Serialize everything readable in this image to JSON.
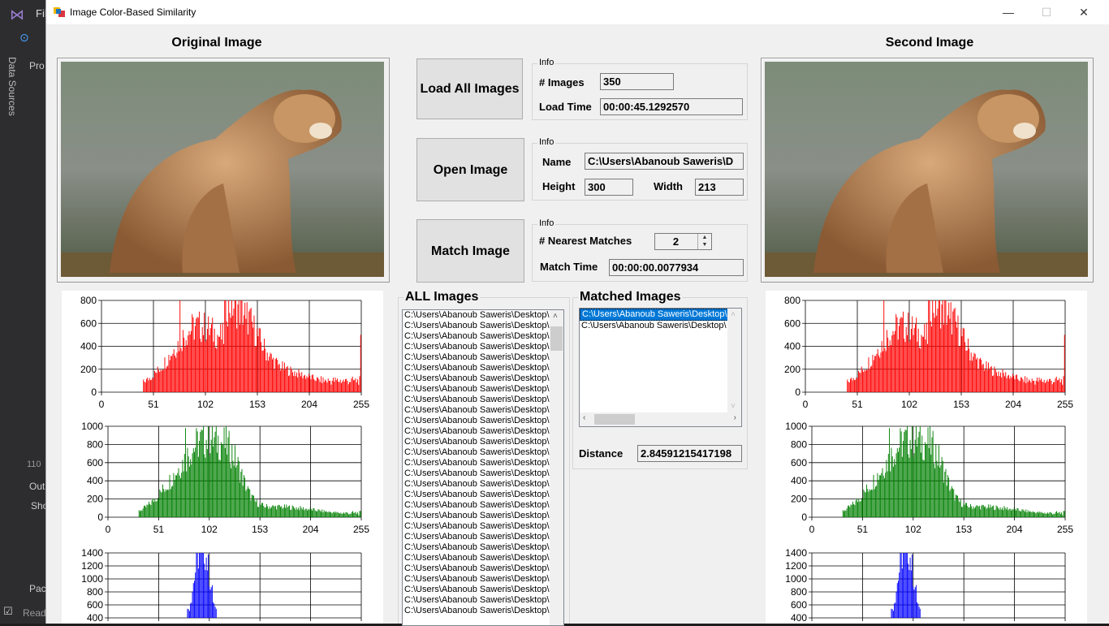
{
  "window": {
    "title": "Image Color-Based Similarity",
    "minimize": "—",
    "maximize": "☐",
    "close": "✕"
  },
  "ide": {
    "side_tab": "Data Sources",
    "menu_fragment": "Fil",
    "pro": "Pro",
    "line_num": "110",
    "out": "Out",
    "sho": "Sho",
    "pac": "Pac",
    "ready": "Ready"
  },
  "original_heading": "Original Image",
  "second_heading": "Second Image",
  "load_all": {
    "button": "Load All Images",
    "group": "Info",
    "images_label": "# Images",
    "images_value": "350",
    "load_time_label": "Load Time",
    "load_time_value": "00:00:45.1292570"
  },
  "open_image": {
    "button": "Open Image",
    "group": "Info",
    "name_label": "Name",
    "name_value": "C:\\Users\\Abanoub Saweris\\D",
    "height_label": "Height",
    "height_value": "300",
    "width_label": "Width",
    "width_value": "213"
  },
  "match_image": {
    "button": "Match Image",
    "group": "Info",
    "nearest_label": "# Nearest Matches",
    "nearest_value": "2",
    "match_time_label": "Match Time",
    "match_time_value": "00:00:00.0077934"
  },
  "all_images": {
    "label": "ALL Images",
    "item": "C:\\Users\\Abanoub Saweris\\Desktop\\",
    "count_visible": 29
  },
  "matched_images": {
    "label": "Matched Images",
    "items": [
      "C:\\Users\\Abanoub Saweris\\Desktop\\",
      "C:\\Users\\Abanoub Saweris\\Desktop\\"
    ],
    "distance_label": "Distance",
    "distance_value": "2.84591215417198"
  },
  "histograms": {
    "red": {
      "color": "#ff0000",
      "yticks": [
        "800",
        "600",
        "400",
        "200",
        "0"
      ],
      "xticks": [
        "0",
        "51",
        "102",
        "153",
        "204",
        "255"
      ],
      "ymax": 850
    },
    "green": {
      "color": "#008000",
      "yticks": [
        "1000",
        "800",
        "600",
        "400",
        "200",
        "0"
      ],
      "xticks": [
        "0",
        "51",
        "102",
        "153",
        "204",
        "255"
      ],
      "ymax": 1000
    },
    "blue": {
      "color": "#0000ff",
      "yticks": [
        "1400",
        "1200",
        "1000",
        "800",
        "600",
        "400"
      ]
    }
  }
}
